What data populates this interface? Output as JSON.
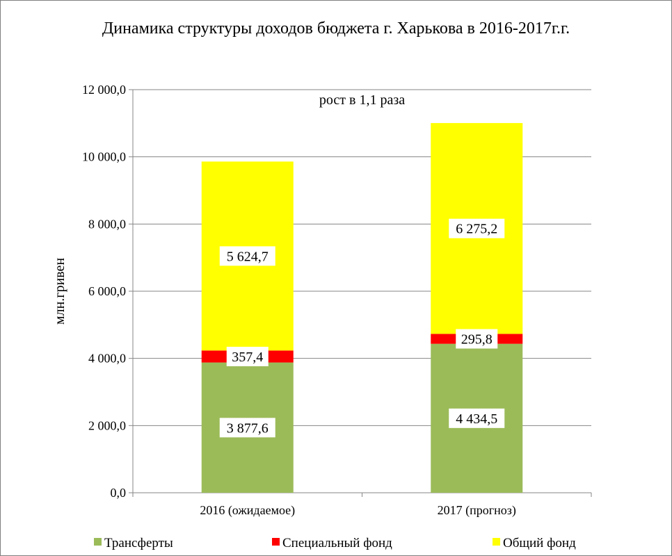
{
  "chart_data": {
    "type": "bar",
    "stacked": true,
    "title": "Динамика структуры доходов бюджета г. Харькова в 2016-2017г.г.",
    "ylabel": "млн.гривен",
    "xlabel": "",
    "categories": [
      "2016 (ожидаемое)",
      "2017 (прогноз)"
    ],
    "ylim": [
      0,
      12000
    ],
    "yticks": [
      0,
      2000,
      4000,
      6000,
      8000,
      10000,
      12000
    ],
    "ytick_labels": [
      "0,0",
      "2 000,0",
      "4 000,0",
      "6 000,0",
      "8 000,0",
      "10 000,0",
      "12 000,0"
    ],
    "grid": true,
    "legend_position": "bottom",
    "series": [
      {
        "name": "Трансферты",
        "color": "#9bbb59",
        "values": [
          3877.6,
          4434.5
        ],
        "labels": [
          "3 877,6",
          "4 434,5"
        ]
      },
      {
        "name": "Специальный фонд",
        "color": "#ff0000",
        "values": [
          357.4,
          295.8
        ],
        "labels": [
          "357,4",
          "295,8"
        ]
      },
      {
        "name": "Общий фонд",
        "color": "#ffff00",
        "values": [
          5624.7,
          6275.2
        ],
        "labels": [
          "5 624,7",
          "6 275,2"
        ]
      }
    ],
    "annotation": "рост в 1,1 раза"
  }
}
